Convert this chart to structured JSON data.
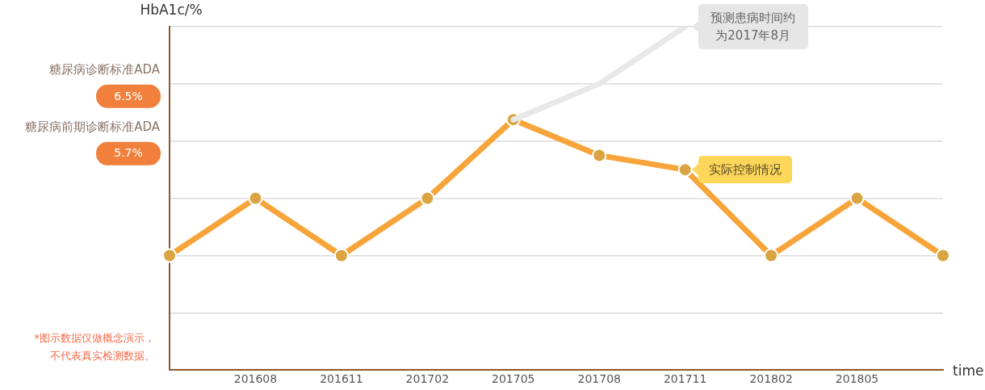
{
  "chart_data": {
    "type": "line",
    "ylabel": "HbA1c/%",
    "xlabel": "time",
    "categories": [
      null,
      "201608",
      "201611",
      "201702",
      "201705",
      "201708",
      "201711",
      "201802",
      "201805",
      null
    ],
    "series": [
      {
        "color": "#e8e8e8",
        "marker": "none",
        "values": [
          null,
          null,
          null,
          null,
          6.0,
          6.5,
          7.3,
          null,
          null,
          null
        ]
      },
      {
        "color": "#f7a43a",
        "values": [
          4.1,
          4.9,
          4.1,
          4.9,
          6.0,
          5.5,
          5.3,
          4.1,
          4.9,
          4.1
        ]
      }
    ],
    "ylim": [
      2.5,
      7.3
    ],
    "yticks": [
      {
        "value": 3.3,
        "label": null
      },
      {
        "value": 4.1,
        "label": null
      },
      {
        "value": 4.9,
        "label": null
      },
      {
        "value": 5.7,
        "label": "5.7%"
      },
      {
        "value": 6.5,
        "label": "6.5%"
      },
      {
        "value": 7.3,
        "label": null
      }
    ],
    "annotations": [
      "糖尿病诊断标准ADA",
      "糖尿病前期诊断标准ADA",
      {
        "text": "预测患病时间约为2017年8月",
        "x": "201711",
        "y": 7.3
      },
      {
        "text": "实际控制情况",
        "x": "201711",
        "y": 5.3
      },
      "*图示数据仅做概念演示，不代表真实检测数据。"
    ],
    "grid": "y",
    "marker": "circle",
    "legend": false
  }
}
